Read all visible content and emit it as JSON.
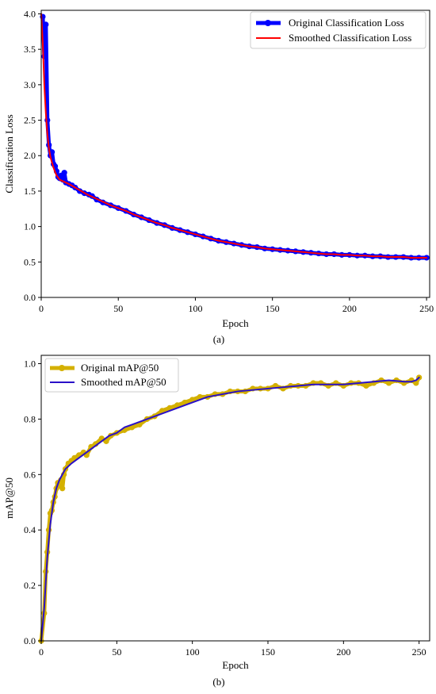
{
  "chart_data": [
    {
      "type": "line",
      "caption": "(a)",
      "xlabel": "Epoch",
      "ylabel": "Classification Loss",
      "xlim": [
        0,
        252
      ],
      "ylim": [
        0,
        4.05
      ],
      "xticks": [
        0,
        50,
        100,
        150,
        200,
        250
      ],
      "yticks": [
        0.0,
        0.5,
        1.0,
        1.5,
        2.0,
        2.5,
        3.0,
        3.5,
        4.0
      ],
      "grid": false,
      "legend_position": "top-right",
      "series": [
        {
          "name": "Original Classification Loss",
          "color": "#0000ff",
          "style": "thick-line-with-dots",
          "points": [
            [
              1,
              3.96
            ],
            [
              2,
              3.4
            ],
            [
              3,
              3.85
            ],
            [
              4,
              2.5
            ],
            [
              5,
              2.15
            ],
            [
              6,
              2.0
            ],
            [
              7,
              2.05
            ],
            [
              8,
              1.88
            ],
            [
              9,
              1.85
            ],
            [
              10,
              1.78
            ],
            [
              11,
              1.7
            ],
            [
              12,
              1.68
            ],
            [
              13,
              1.72
            ],
            [
              14,
              1.66
            ],
            [
              15,
              1.76
            ],
            [
              16,
              1.62
            ],
            [
              18,
              1.6
            ],
            [
              20,
              1.58
            ],
            [
              22,
              1.55
            ],
            [
              25,
              1.5
            ],
            [
              28,
              1.47
            ],
            [
              31,
              1.45
            ],
            [
              33,
              1.43
            ],
            [
              36,
              1.38
            ],
            [
              40,
              1.34
            ],
            [
              45,
              1.3
            ],
            [
              50,
              1.26
            ],
            [
              55,
              1.22
            ],
            [
              60,
              1.17
            ],
            [
              65,
              1.13
            ],
            [
              70,
              1.09
            ],
            [
              75,
              1.05
            ],
            [
              80,
              1.02
            ],
            [
              85,
              0.98
            ],
            [
              90,
              0.95
            ],
            [
              95,
              0.92
            ],
            [
              100,
              0.89
            ],
            [
              105,
              0.86
            ],
            [
              110,
              0.83
            ],
            [
              115,
              0.8
            ],
            [
              120,
              0.78
            ],
            [
              125,
              0.76
            ],
            [
              130,
              0.74
            ],
            [
              135,
              0.72
            ],
            [
              140,
              0.71
            ],
            [
              145,
              0.69
            ],
            [
              150,
              0.68
            ],
            [
              155,
              0.67
            ],
            [
              160,
              0.66
            ],
            [
              165,
              0.65
            ],
            [
              170,
              0.64
            ],
            [
              175,
              0.63
            ],
            [
              180,
              0.62
            ],
            [
              185,
              0.61
            ],
            [
              190,
              0.61
            ],
            [
              195,
              0.6
            ],
            [
              200,
              0.6
            ],
            [
              205,
              0.59
            ],
            [
              210,
              0.59
            ],
            [
              215,
              0.58
            ],
            [
              220,
              0.58
            ],
            [
              225,
              0.57
            ],
            [
              230,
              0.57
            ],
            [
              235,
              0.57
            ],
            [
              240,
              0.56
            ],
            [
              245,
              0.56
            ],
            [
              250,
              0.56
            ]
          ]
        },
        {
          "name": "Smoothed Classification Loss",
          "color": "#ff0000",
          "style": "line",
          "points": [
            [
              0,
              4.0
            ],
            [
              1,
              3.6
            ],
            [
              2,
              3.0
            ],
            [
              3,
              2.6
            ],
            [
              4,
              2.3
            ],
            [
              5,
              2.1
            ],
            [
              6,
              1.98
            ],
            [
              7,
              1.9
            ],
            [
              8,
              1.83
            ],
            [
              9,
              1.77
            ],
            [
              10,
              1.72
            ],
            [
              12,
              1.66
            ],
            [
              15,
              1.63
            ],
            [
              18,
              1.6
            ],
            [
              22,
              1.55
            ],
            [
              26,
              1.5
            ],
            [
              30,
              1.45
            ],
            [
              35,
              1.4
            ],
            [
              40,
              1.35
            ],
            [
              45,
              1.3
            ],
            [
              50,
              1.26
            ],
            [
              55,
              1.22
            ],
            [
              60,
              1.17
            ],
            [
              65,
              1.13
            ],
            [
              70,
              1.09
            ],
            [
              75,
              1.05
            ],
            [
              80,
              1.02
            ],
            [
              85,
              0.98
            ],
            [
              90,
              0.95
            ],
            [
              95,
              0.92
            ],
            [
              100,
              0.89
            ],
            [
              105,
              0.86
            ],
            [
              110,
              0.83
            ],
            [
              115,
              0.8
            ],
            [
              120,
              0.78
            ],
            [
              125,
              0.76
            ],
            [
              130,
              0.74
            ],
            [
              135,
              0.72
            ],
            [
              140,
              0.71
            ],
            [
              145,
              0.69
            ],
            [
              150,
              0.68
            ],
            [
              155,
              0.67
            ],
            [
              160,
              0.66
            ],
            [
              165,
              0.65
            ],
            [
              170,
              0.64
            ],
            [
              175,
              0.63
            ],
            [
              180,
              0.62
            ],
            [
              185,
              0.61
            ],
            [
              190,
              0.61
            ],
            [
              195,
              0.6
            ],
            [
              200,
              0.6
            ],
            [
              205,
              0.59
            ],
            [
              210,
              0.59
            ],
            [
              215,
              0.58
            ],
            [
              220,
              0.58
            ],
            [
              225,
              0.57
            ],
            [
              230,
              0.57
            ],
            [
              235,
              0.57
            ],
            [
              240,
              0.56
            ],
            [
              245,
              0.56
            ],
            [
              250,
              0.56
            ]
          ]
        }
      ]
    },
    {
      "type": "line",
      "caption": "(b)",
      "xlabel": "Epoch",
      "ylabel": "mAP@50",
      "xlim": [
        0,
        257
      ],
      "ylim": [
        0,
        1.03
      ],
      "xticks": [
        0,
        50,
        100,
        150,
        200,
        250
      ],
      "yticks": [
        0.0,
        0.2,
        0.4,
        0.6,
        0.8,
        1.0
      ],
      "grid": false,
      "legend_position": "top-left",
      "series": [
        {
          "name": "Original mAP@50",
          "color": "#d4b000",
          "style": "thick-line-with-dots",
          "points": [
            [
              0,
              0.0
            ],
            [
              2,
              0.1
            ],
            [
              3,
              0.25
            ],
            [
              4,
              0.32
            ],
            [
              5,
              0.4
            ],
            [
              6,
              0.46
            ],
            [
              7,
              0.47
            ],
            [
              8,
              0.5
            ],
            [
              9,
              0.52
            ],
            [
              10,
              0.55
            ],
            [
              11,
              0.57
            ],
            [
              12,
              0.56
            ],
            [
              13,
              0.58
            ],
            [
              14,
              0.55
            ],
            [
              15,
              0.6
            ],
            [
              16,
              0.62
            ],
            [
              18,
              0.64
            ],
            [
              20,
              0.65
            ],
            [
              22,
              0.66
            ],
            [
              25,
              0.67
            ],
            [
              28,
              0.68
            ],
            [
              30,
              0.67
            ],
            [
              33,
              0.7
            ],
            [
              36,
              0.71
            ],
            [
              40,
              0.73
            ],
            [
              43,
              0.72
            ],
            [
              46,
              0.74
            ],
            [
              50,
              0.75
            ],
            [
              55,
              0.76
            ],
            [
              60,
              0.77
            ],
            [
              65,
              0.78
            ],
            [
              70,
              0.8
            ],
            [
              75,
              0.81
            ],
            [
              80,
              0.83
            ],
            [
              85,
              0.84
            ],
            [
              90,
              0.85
            ],
            [
              95,
              0.86
            ],
            [
              100,
              0.87
            ],
            [
              105,
              0.88
            ],
            [
              110,
              0.88
            ],
            [
              115,
              0.89
            ],
            [
              120,
              0.89
            ],
            [
              125,
              0.9
            ],
            [
              130,
              0.9
            ],
            [
              135,
              0.9
            ],
            [
              140,
              0.91
            ],
            [
              145,
              0.91
            ],
            [
              150,
              0.91
            ],
            [
              155,
              0.92
            ],
            [
              160,
              0.91
            ],
            [
              165,
              0.92
            ],
            [
              170,
              0.92
            ],
            [
              175,
              0.92
            ],
            [
              180,
              0.93
            ],
            [
              185,
              0.93
            ],
            [
              190,
              0.92
            ],
            [
              195,
              0.93
            ],
            [
              200,
              0.92
            ],
            [
              205,
              0.93
            ],
            [
              210,
              0.93
            ],
            [
              215,
              0.92
            ],
            [
              220,
              0.93
            ],
            [
              225,
              0.94
            ],
            [
              230,
              0.93
            ],
            [
              235,
              0.94
            ],
            [
              240,
              0.93
            ],
            [
              245,
              0.94
            ],
            [
              248,
              0.93
            ],
            [
              250,
              0.95
            ]
          ]
        },
        {
          "name": "Smoothed mAP@50",
          "color": "#2a10c8",
          "style": "line",
          "points": [
            [
              0,
              0.0
            ],
            [
              2,
              0.12
            ],
            [
              4,
              0.3
            ],
            [
              6,
              0.42
            ],
            [
              8,
              0.5
            ],
            [
              10,
              0.55
            ],
            [
              12,
              0.58
            ],
            [
              14,
              0.6
            ],
            [
              16,
              0.62
            ],
            [
              18,
              0.63
            ],
            [
              20,
              0.64
            ],
            [
              25,
              0.66
            ],
            [
              30,
              0.68
            ],
            [
              35,
              0.7
            ],
            [
              40,
              0.72
            ],
            [
              45,
              0.74
            ],
            [
              50,
              0.75
            ],
            [
              55,
              0.77
            ],
            [
              60,
              0.78
            ],
            [
              70,
              0.8
            ],
            [
              80,
              0.82
            ],
            [
              90,
              0.84
            ],
            [
              100,
              0.86
            ],
            [
              110,
              0.88
            ],
            [
              120,
              0.89
            ],
            [
              130,
              0.9
            ],
            [
              140,
              0.905
            ],
            [
              150,
              0.91
            ],
            [
              160,
              0.915
            ],
            [
              170,
              0.92
            ],
            [
              180,
              0.925
            ],
            [
              190,
              0.925
            ],
            [
              200,
              0.925
            ],
            [
              210,
              0.93
            ],
            [
              220,
              0.935
            ],
            [
              230,
              0.94
            ],
            [
              240,
              0.935
            ],
            [
              245,
              0.935
            ],
            [
              248,
              0.94
            ],
            [
              250,
              0.95
            ]
          ]
        }
      ]
    }
  ]
}
